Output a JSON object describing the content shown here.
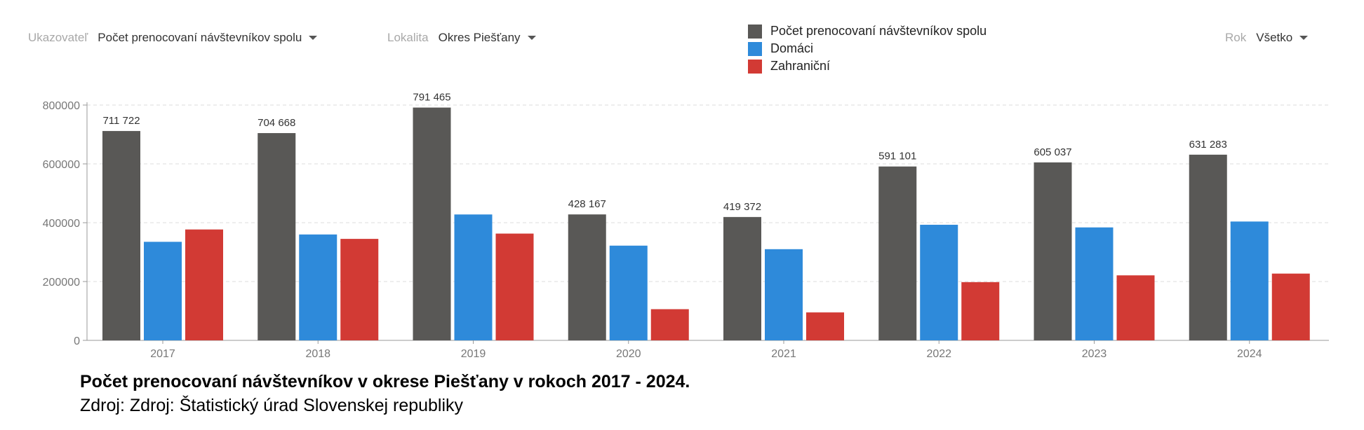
{
  "filters": {
    "indicator": {
      "label": "Ukazovateľ",
      "value": "Počet prenocovaní návštevníkov spolu"
    },
    "location": {
      "label": "Lokalita",
      "value": "Okres Piešťany"
    },
    "year": {
      "label": "Rok",
      "value": "Všetko"
    }
  },
  "legend": [
    {
      "label": "Počet prenocovaní návštevníkov spolu",
      "color": "#595856"
    },
    {
      "label": "Domáci",
      "color": "#2e8ada"
    },
    {
      "label": "Zahraniční",
      "color": "#d23a34"
    }
  ],
  "caption": {
    "title": "Počet prenocovaní návštevníkov v okrese Piešťany v rokoch 2017 - 2024.",
    "source": "Zdroj: Zdroj: Štatistický úrad Slovenskej republiky"
  },
  "chart_data": {
    "type": "bar",
    "categories": [
      "2017",
      "2018",
      "2019",
      "2020",
      "2021",
      "2022",
      "2023",
      "2024"
    ],
    "series": [
      {
        "name": "Počet prenocovaní návštevníkov spolu",
        "color": "#595856",
        "values": [
          711722,
          704668,
          791465,
          428167,
          419372,
          591101,
          605037,
          631283
        ],
        "labels": [
          "711 722",
          "704 668",
          "791 465",
          "428 167",
          "419 372",
          "591 101",
          "605 037",
          "631 283"
        ]
      },
      {
        "name": "Domáci",
        "color": "#2e8ada",
        "values": [
          335000,
          360000,
          428000,
          322000,
          310000,
          393000,
          384000,
          404000
        ]
      },
      {
        "name": "Zahraniční",
        "color": "#d23a34",
        "values": [
          377000,
          345000,
          363000,
          106000,
          95000,
          198000,
          221000,
          227000
        ]
      }
    ],
    "yticks": [
      0,
      200000,
      400000,
      600000,
      800000
    ],
    "ytick_labels": [
      "0",
      "200000",
      "400000",
      "600000",
      "800000"
    ],
    "ylim": [
      0,
      800000
    ],
    "grid": true,
    "legend_position": "top-center"
  }
}
